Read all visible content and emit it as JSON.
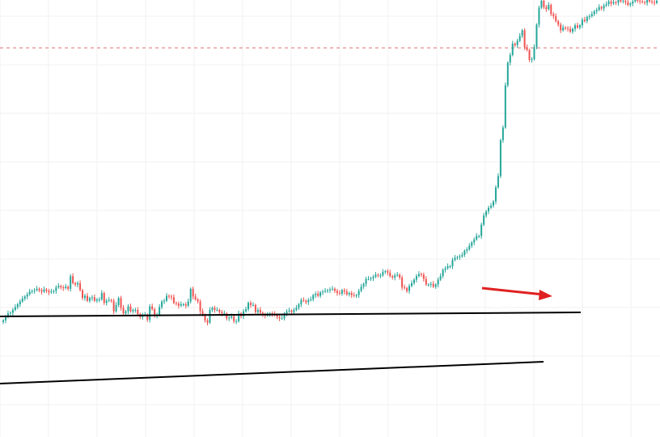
{
  "chart_data": {
    "type": "candlestick",
    "title": "",
    "xlabel": "",
    "ylabel": "",
    "grid": true,
    "legend": "none",
    "ylim": [
      0,
      540
    ],
    "x": [
      1,
      2,
      3,
      4,
      5,
      6,
      7,
      8,
      9,
      10,
      11,
      12,
      13,
      14,
      15,
      16,
      17,
      18,
      19,
      20,
      21,
      22,
      23,
      24,
      25,
      26,
      27,
      28,
      29,
      30,
      31,
      32,
      33,
      34,
      35,
      36,
      37,
      38,
      39,
      40,
      41,
      42,
      43,
      44,
      45,
      46,
      47,
      48,
      49,
      50,
      51,
      52,
      53,
      54,
      55,
      56,
      57,
      58,
      59,
      60,
      61,
      62,
      63,
      64,
      65,
      66,
      67,
      68,
      69,
      70,
      71,
      72,
      73,
      74,
      75,
      76,
      77,
      78,
      79,
      80,
      81,
      82,
      83,
      84,
      85,
      86,
      87,
      88,
      89,
      90,
      91,
      92,
      93,
      94,
      95,
      96,
      97,
      98,
      99,
      100,
      101,
      102,
      103,
      104,
      105,
      106,
      107,
      108,
      109,
      110,
      111,
      112,
      113,
      114,
      115,
      116,
      117,
      118,
      119,
      120,
      121,
      122,
      123,
      124,
      125,
      126,
      127,
      128,
      129,
      130,
      131,
      132,
      133,
      134,
      135,
      136,
      137,
      138,
      139,
      140,
      141,
      142,
      143,
      144,
      145,
      146,
      147,
      148,
      149,
      150,
      151,
      152,
      153,
      154,
      155,
      156,
      157,
      158,
      159,
      160,
      161,
      162,
      163,
      164,
      165,
      166,
      167,
      168,
      169,
      170,
      171,
      172,
      173,
      174,
      175,
      176,
      177,
      178,
      179,
      180,
      181,
      182,
      183,
      184,
      185,
      186,
      187,
      188,
      189,
      190,
      191,
      192,
      193,
      194,
      195,
      196,
      197,
      198,
      199,
      200,
      201,
      202,
      203,
      204,
      205,
      206,
      207,
      208,
      209,
      210,
      211,
      212,
      213,
      214,
      215,
      216,
      217,
      218,
      219,
      220,
      221,
      222,
      223,
      224,
      225,
      226,
      227,
      228,
      229,
      230,
      231,
      232,
      233,
      234,
      235,
      236,
      237,
      238,
      239,
      240,
      241,
      242,
      243,
      244,
      245,
      246,
      247,
      248,
      249,
      250,
      251,
      252,
      253,
      254,
      255,
      256,
      257,
      258,
      259,
      260,
      261,
      262,
      263,
      264,
      265,
      266,
      267,
      268,
      269,
      270,
      271,
      272,
      273
    ],
    "close": [
      85,
      90,
      95,
      96,
      100,
      104,
      108,
      112,
      116,
      119,
      122,
      126,
      127,
      128,
      130,
      128,
      126,
      129,
      127,
      125,
      126,
      127,
      132,
      134,
      132,
      131,
      133,
      130,
      148,
      138,
      136,
      138,
      128,
      117,
      120,
      113,
      117,
      118,
      113,
      115,
      115,
      124,
      110,
      113,
      114,
      113,
      98,
      107,
      117,
      103,
      95,
      98,
      105,
      98,
      100,
      100,
      94,
      90,
      93,
      93,
      86,
      105,
      101,
      92,
      93,
      104,
      112,
      113,
      120,
      119,
      118,
      110,
      109,
      106,
      108,
      108,
      106,
      112,
      130,
      119,
      115,
      112,
      98,
      93,
      85,
      82,
      100,
      103,
      100,
      100,
      97,
      95,
      95,
      88,
      89,
      91,
      84,
      84,
      95,
      91,
      98,
      101,
      110,
      107,
      107,
      97,
      100,
      96,
      93,
      92,
      93,
      95,
      94,
      93,
      90,
      88,
      88,
      95,
      98,
      99,
      97,
      100,
      103,
      108,
      114,
      113,
      111,
      114,
      115,
      121,
      123,
      120,
      125,
      126,
      127,
      128,
      129,
      130,
      127,
      124,
      123,
      128,
      126,
      122,
      124,
      121,
      120,
      121,
      127,
      133,
      137,
      144,
      144,
      145,
      147,
      150,
      149,
      149,
      154,
      155,
      153,
      148,
      146,
      149,
      150,
      146,
      132,
      131,
      127,
      134,
      138,
      143,
      148,
      151,
      150,
      144,
      136,
      136,
      137,
      133,
      136,
      143,
      148,
      157,
      159,
      162,
      162,
      171,
      174,
      175,
      176,
      178,
      184,
      186,
      191,
      196,
      200,
      205,
      205,
      221,
      234,
      240,
      245,
      248,
      254,
      274,
      290,
      341,
      359,
      419,
      451,
      462,
      478,
      476,
      482,
      489,
      497,
      473,
      469,
      455,
      456,
      473,
      505,
      529,
      539,
      530,
      527,
      533,
      520,
      517,
      510,
      505,
      497,
      501,
      500,
      499,
      495,
      499,
      504,
      501,
      504,
      512,
      510,
      516,
      517,
      520,
      524,
      526,
      530,
      528,
      532,
      534,
      538,
      535,
      537,
      536,
      540,
      538,
      539,
      537,
      533,
      535,
      538,
      540,
      539,
      538,
      537,
      536,
      540,
      538,
      537,
      536,
      539
    ],
    "horizontal_levels": [
      472
    ],
    "trendlines": 2,
    "annotations": [
      {
        "type": "arrow",
        "color": "#e02020"
      }
    ],
    "colors": {
      "up": "#26a69a",
      "down": "#ef5350",
      "trendline": "#000000",
      "arrow": "#e02020",
      "level": "#e07070",
      "grid": "#f2f2f2"
    }
  }
}
